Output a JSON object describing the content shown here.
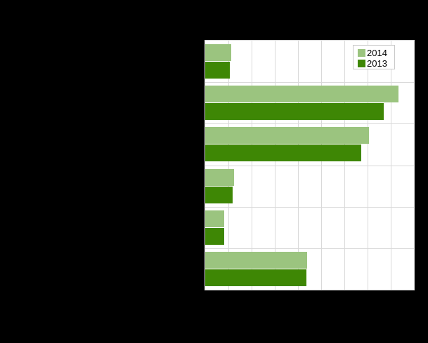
{
  "colors": {
    "page_background": "#000000",
    "plot_background": "#FFFFFF",
    "gridline": "#D9D9D9",
    "legend_border": "#C9C9C9",
    "legend_background": "#FFFFFF",
    "legend_text": "#000000",
    "series_2014": "#9BC47F",
    "series_2013": "#3E8705"
  },
  "chart_data": {
    "type": "bar",
    "orientation": "horizontal",
    "title": "",
    "categories": [
      "",
      "",
      "",
      "",
      "",
      ""
    ],
    "series": [
      {
        "name": "2014",
        "color": "#9BC47F",
        "values": [
          1.12,
          8.34,
          7.07,
          1.24,
          0.82,
          4.38
        ]
      },
      {
        "name": "2013",
        "color": "#3E8705",
        "values": [
          1.05,
          7.7,
          6.74,
          1.18,
          0.82,
          4.37
        ]
      }
    ],
    "x_axis": {
      "min": 0,
      "max": 9,
      "gridline_interval": 1,
      "tick_labels": []
    },
    "y_axis": {
      "category_labels_visible": false
    },
    "grid": true,
    "legend_position": "top-right"
  }
}
